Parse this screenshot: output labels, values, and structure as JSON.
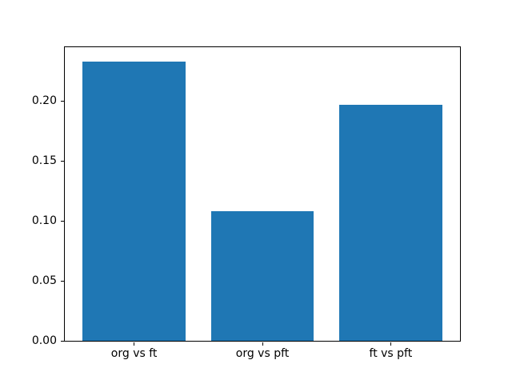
{
  "figure": {
    "background_color": "#ffffff",
    "title": ""
  },
  "chart_data": {
    "type": "bar",
    "title": "",
    "xlabel": "",
    "ylabel": "",
    "categories": [
      "org vs ft",
      "org vs pft",
      "ft vs pft"
    ],
    "values": [
      0.233,
      0.108,
      0.197
    ],
    "ylim": [
      0,
      0.2447
    ],
    "xlim": [
      -0.54,
      2.54
    ],
    "bar_positions": [
      0,
      1,
      2
    ],
    "bar_width_fraction": 0.8,
    "yticks": [
      {
        "value": 0.0,
        "label": "0.00"
      },
      {
        "value": 0.05,
        "label": "0.05"
      },
      {
        "value": 0.1,
        "label": "0.10"
      },
      {
        "value": 0.15,
        "label": "0.15"
      },
      {
        "value": 0.2,
        "label": "0.20"
      }
    ],
    "bar_color": "#1f77b4",
    "axis_color": "#000000",
    "text_color": "#000000",
    "grid": false,
    "legend": null
  }
}
